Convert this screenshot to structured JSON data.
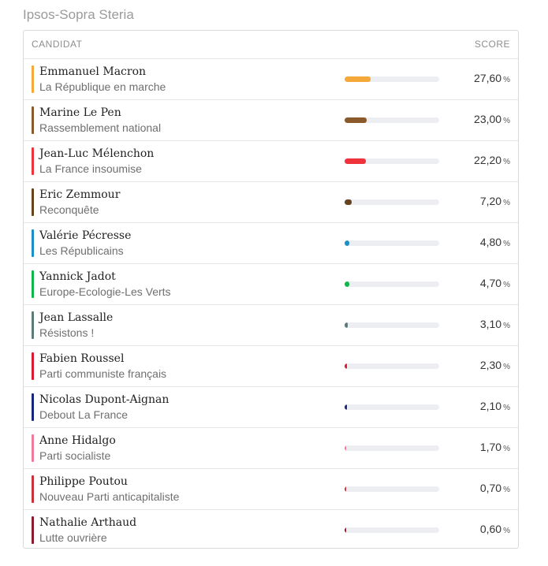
{
  "source": "Ipsos-Sopra Steria",
  "header": {
    "candidate_label": "CANDIDAT",
    "score_label": "SCORE"
  },
  "unit": "%",
  "chart_data": {
    "type": "bar",
    "title": "",
    "xlabel": "",
    "ylabel": "",
    "ylim": [
      0,
      100
    ],
    "rows": [
      {
        "name": "Emmanuel Macron",
        "party": "La République en marche",
        "value": 27.6,
        "display": "27,60",
        "color": "#f6a93b"
      },
      {
        "name": "Marine Le Pen",
        "party": "Rassemblement national",
        "value": 23.0,
        "display": "23,00",
        "color": "#8b5a2b"
      },
      {
        "name": "Jean-Luc Mélenchon",
        "party": "La France insoumise",
        "value": 22.2,
        "display": "22,20",
        "color": "#f0323d"
      },
      {
        "name": "Eric Zemmour",
        "party": "Reconquête",
        "value": 7.2,
        "display": "7,20",
        "color": "#654321"
      },
      {
        "name": "Valérie Pécresse",
        "party": "Les Républicains",
        "value": 4.8,
        "display": "4,80",
        "color": "#1e8fc6"
      },
      {
        "name": "Yannick Jadot",
        "party": "Europe-Ecologie-Les Verts",
        "value": 4.7,
        "display": "4,70",
        "color": "#11b64a"
      },
      {
        "name": "Jean Lassalle",
        "party": "Résistons !",
        "value": 3.1,
        "display": "3,10",
        "color": "#5e7a78"
      },
      {
        "name": "Fabien Roussel",
        "party": "Parti communiste français",
        "value": 2.3,
        "display": "2,30",
        "color": "#dd1931"
      },
      {
        "name": "Nicolas Dupont-Aignan",
        "party": "Debout La France",
        "value": 2.1,
        "display": "2,10",
        "color": "#17257a"
      },
      {
        "name": "Anne Hidalgo",
        "party": "Parti socialiste",
        "value": 1.7,
        "display": "1,70",
        "color": "#f07a9a"
      },
      {
        "name": "Philippe Poutou",
        "party": "Nouveau Parti anticapitaliste",
        "value": 0.7,
        "display": "0,70",
        "color": "#c8333b"
      },
      {
        "name": "Nathalie Arthaud",
        "party": "Lutte ouvrière",
        "value": 0.6,
        "display": "0,60",
        "color": "#8a1d2c"
      }
    ]
  }
}
